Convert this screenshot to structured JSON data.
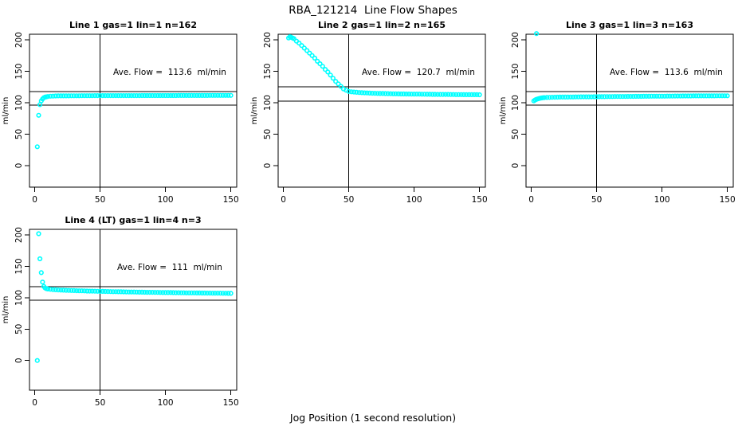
{
  "figure": {
    "title": "RBA_121214  Line Flow Shapes",
    "xlabel": "Jog Position (1 second resolution)",
    "background_color": "#ffffff",
    "line_color": "#000000"
  },
  "chart_data": [
    {
      "type": "scatter",
      "title": "Line 1 gas=1 lin=1 n=162",
      "ave_flow_label": "Ave. Flow =  113.6  ml/min",
      "ave_flow_value": 113.6,
      "ylabel": "ml/min",
      "marker_color": "#00FFFF",
      "x_ticks": [
        0,
        50,
        100,
        150
      ],
      "y_ticks": [
        0,
        50,
        100,
        150,
        200
      ],
      "xlim": [
        -4,
        154.5
      ],
      "ylim": [
        -34.2,
        209
      ],
      "vline_x": 50,
      "hlines": [
        117.7,
        96.3
      ],
      "points": [
        [
          2,
          30
        ],
        [
          3,
          80
        ],
        [
          4,
          97
        ],
        [
          5,
          103
        ],
        [
          6,
          106
        ],
        [
          7,
          108
        ],
        [
          8,
          109
        ],
        [
          9,
          109.5
        ],
        [
          10,
          110
        ],
        [
          12,
          110.4
        ],
        [
          14,
          110.6
        ],
        [
          16,
          110.8
        ],
        [
          18,
          110.9
        ],
        [
          20,
          111
        ],
        [
          22,
          111
        ],
        [
          24,
          111
        ],
        [
          26,
          111
        ],
        [
          28,
          111.1
        ],
        [
          30,
          111.1
        ],
        [
          32,
          111.1
        ],
        [
          34,
          111.1
        ],
        [
          36,
          111.2
        ],
        [
          38,
          111.2
        ],
        [
          40,
          111.2
        ],
        [
          42,
          111.2
        ],
        [
          44,
          111.2
        ],
        [
          46,
          111.3
        ],
        [
          48,
          111.3
        ],
        [
          50,
          111.3
        ],
        [
          52,
          111.3
        ],
        [
          54,
          111.3
        ],
        [
          56,
          111.3
        ],
        [
          58,
          111.3
        ],
        [
          60,
          111.4
        ],
        [
          62,
          111.4
        ],
        [
          64,
          111.4
        ],
        [
          66,
          111.4
        ],
        [
          68,
          111.4
        ],
        [
          70,
          111.4
        ],
        [
          72,
          111.4
        ],
        [
          74,
          111.4
        ],
        [
          76,
          111.4
        ],
        [
          78,
          111.4
        ],
        [
          80,
          111.4
        ],
        [
          82,
          111.5
        ],
        [
          84,
          111.5
        ],
        [
          86,
          111.5
        ],
        [
          88,
          111.5
        ],
        [
          90,
          111.5
        ],
        [
          92,
          111.5
        ],
        [
          94,
          111.5
        ],
        [
          96,
          111.5
        ],
        [
          98,
          111.5
        ],
        [
          100,
          111.5
        ],
        [
          102,
          111.5
        ],
        [
          104,
          111.5
        ],
        [
          106,
          111.5
        ],
        [
          108,
          111.5
        ],
        [
          110,
          111.6
        ],
        [
          112,
          111.6
        ],
        [
          114,
          111.6
        ],
        [
          116,
          111.6
        ],
        [
          118,
          111.6
        ],
        [
          120,
          111.6
        ],
        [
          122,
          111.6
        ],
        [
          124,
          111.6
        ],
        [
          126,
          111.6
        ],
        [
          128,
          111.6
        ],
        [
          130,
          111.6
        ],
        [
          132,
          111.6
        ],
        [
          134,
          111.7
        ],
        [
          136,
          111.7
        ],
        [
          138,
          111.7
        ],
        [
          140,
          111.7
        ],
        [
          142,
          111.7
        ],
        [
          144,
          111.7
        ],
        [
          146,
          111.7
        ],
        [
          148,
          111.7
        ],
        [
          150,
          111.7
        ]
      ]
    },
    {
      "type": "scatter",
      "title": "Line 2 gas=1 lin=2 n=165",
      "ave_flow_label": "Ave. Flow =  120.7  ml/min",
      "ave_flow_value": 120.7,
      "ylabel": "ml/min",
      "marker_color": "#00FFFF",
      "x_ticks": [
        0,
        50,
        100,
        150
      ],
      "y_ticks": [
        0,
        50,
        100,
        150,
        200
      ],
      "xlim": [
        -4,
        154.5
      ],
      "ylim": [
        -34.2,
        209
      ],
      "vline_x": 50,
      "hlines": [
        125.4,
        102.6
      ],
      "points": [
        [
          4,
          203
        ],
        [
          5,
          205
        ],
        [
          6,
          204
        ],
        [
          7,
          203
        ],
        [
          8,
          202
        ],
        [
          10,
          198
        ],
        [
          12,
          195
        ],
        [
          14,
          191
        ],
        [
          16,
          187
        ],
        [
          18,
          183
        ],
        [
          20,
          179
        ],
        [
          22,
          175
        ],
        [
          24,
          171
        ],
        [
          26,
          166
        ],
        [
          28,
          162
        ],
        [
          30,
          158
        ],
        [
          32,
          153
        ],
        [
          34,
          149
        ],
        [
          36,
          144
        ],
        [
          38,
          139
        ],
        [
          40,
          134
        ],
        [
          42,
          130
        ],
        [
          44,
          126
        ],
        [
          46,
          122
        ],
        [
          48,
          120
        ],
        [
          50,
          118
        ],
        [
          52,
          117.4
        ],
        [
          54,
          117
        ],
        [
          56,
          116.6
        ],
        [
          58,
          116.3
        ],
        [
          60,
          116
        ],
        [
          62,
          115.8
        ],
        [
          64,
          115.6
        ],
        [
          66,
          115.4
        ],
        [
          68,
          115.2
        ],
        [
          70,
          115
        ],
        [
          72,
          114.9
        ],
        [
          74,
          114.8
        ],
        [
          76,
          114.7
        ],
        [
          78,
          114.6
        ],
        [
          80,
          114.5
        ],
        [
          82,
          114.4
        ],
        [
          84,
          114.3
        ],
        [
          86,
          114.2
        ],
        [
          88,
          114.1
        ],
        [
          90,
          114
        ],
        [
          92,
          114
        ],
        [
          94,
          113.9
        ],
        [
          96,
          113.9
        ],
        [
          98,
          113.8
        ],
        [
          100,
          113.8
        ],
        [
          102,
          113.7
        ],
        [
          104,
          113.7
        ],
        [
          106,
          113.6
        ],
        [
          108,
          113.6
        ],
        [
          110,
          113.5
        ],
        [
          112,
          113.5
        ],
        [
          114,
          113.4
        ],
        [
          116,
          113.4
        ],
        [
          118,
          113.3
        ],
        [
          120,
          113.3
        ],
        [
          122,
          113.2
        ],
        [
          124,
          113.2
        ],
        [
          126,
          113.2
        ],
        [
          128,
          113.1
        ],
        [
          130,
          113.1
        ],
        [
          132,
          113
        ],
        [
          134,
          113
        ],
        [
          136,
          113
        ],
        [
          138,
          112.9
        ],
        [
          140,
          112.9
        ],
        [
          142,
          112.9
        ],
        [
          144,
          112.8
        ],
        [
          146,
          112.8
        ],
        [
          148,
          112.8
        ],
        [
          150,
          112.7
        ]
      ]
    },
    {
      "type": "scatter",
      "title": "Line 3 gas=1 lin=3 n=163",
      "ave_flow_label": "Ave. Flow =  113.6  ml/min",
      "ave_flow_value": 113.6,
      "ylabel": "ml/min",
      "marker_color": "#00FFFF",
      "x_ticks": [
        0,
        50,
        100,
        150
      ],
      "y_ticks": [
        0,
        50,
        100,
        150,
        200
      ],
      "xlim": [
        -4,
        154.5
      ],
      "ylim": [
        -34.2,
        209
      ],
      "vline_x": 50,
      "hlines": [
        117.7,
        96.3
      ],
      "points": [
        [
          4,
          210
        ],
        [
          2,
          103
        ],
        [
          3,
          104.5
        ],
        [
          4,
          105.5
        ],
        [
          5,
          106.2
        ],
        [
          6,
          106.8
        ],
        [
          7,
          107.3
        ],
        [
          8,
          107.7
        ],
        [
          9,
          108
        ],
        [
          10,
          108.2
        ],
        [
          12,
          108.4
        ],
        [
          14,
          108.5
        ],
        [
          16,
          108.7
        ],
        [
          18,
          108.8
        ],
        [
          20,
          108.9
        ],
        [
          22,
          109
        ],
        [
          24,
          109
        ],
        [
          26,
          109.1
        ],
        [
          28,
          109.1
        ],
        [
          30,
          109.2
        ],
        [
          32,
          109.2
        ],
        [
          34,
          109.3
        ],
        [
          36,
          109.3
        ],
        [
          38,
          109.4
        ],
        [
          40,
          109.4
        ],
        [
          42,
          109.5
        ],
        [
          44,
          109.5
        ],
        [
          46,
          109.5
        ],
        [
          48,
          109.6
        ],
        [
          50,
          109.6
        ],
        [
          52,
          109.7
        ],
        [
          54,
          109.7
        ],
        [
          56,
          109.7
        ],
        [
          58,
          109.8
        ],
        [
          60,
          109.8
        ],
        [
          62,
          109.8
        ],
        [
          64,
          109.9
        ],
        [
          66,
          109.9
        ],
        [
          68,
          110
        ],
        [
          70,
          110
        ],
        [
          72,
          110
        ],
        [
          74,
          110.1
        ],
        [
          76,
          110.1
        ],
        [
          78,
          110.1
        ],
        [
          80,
          110.2
        ],
        [
          82,
          110.2
        ],
        [
          84,
          110.2
        ],
        [
          86,
          110.3
        ],
        [
          88,
          110.3
        ],
        [
          90,
          110.3
        ],
        [
          92,
          110.4
        ],
        [
          94,
          110.4
        ],
        [
          96,
          110.4
        ],
        [
          98,
          110.5
        ],
        [
          100,
          110.5
        ],
        [
          102,
          110.5
        ],
        [
          104,
          110.6
        ],
        [
          106,
          110.6
        ],
        [
          108,
          110.6
        ],
        [
          110,
          110.7
        ],
        [
          112,
          110.7
        ],
        [
          114,
          110.7
        ],
        [
          116,
          110.8
        ],
        [
          118,
          110.8
        ],
        [
          120,
          110.8
        ],
        [
          122,
          110.8
        ],
        [
          124,
          110.9
        ],
        [
          126,
          110.9
        ],
        [
          128,
          110.9
        ],
        [
          130,
          110.9
        ],
        [
          132,
          111
        ],
        [
          134,
          111
        ],
        [
          136,
          111
        ],
        [
          138,
          111
        ],
        [
          140,
          111
        ],
        [
          142,
          111.1
        ],
        [
          144,
          111.1
        ],
        [
          146,
          111.1
        ],
        [
          148,
          111.1
        ],
        [
          150,
          111.1
        ]
      ]
    },
    {
      "type": "scatter",
      "title": "Line 4 (LT) gas=1 lin=4 n=3",
      "ave_flow_label": "Ave. Flow =  111  ml/min",
      "ave_flow_value": 111,
      "ylabel": "ml/min",
      "marker_color": "#00FFFF",
      "x_ticks": [
        0,
        50,
        100,
        150
      ],
      "y_ticks": [
        0,
        50,
        100,
        150,
        200
      ],
      "xlim": [
        -4,
        154.5
      ],
      "ylim": [
        -47.3,
        209
      ],
      "vline_x": 50,
      "hlines": [
        117.7,
        96.3
      ],
      "points": [
        [
          2,
          0
        ],
        [
          3,
          202
        ],
        [
          4,
          162
        ],
        [
          5,
          140
        ],
        [
          6,
          125
        ],
        [
          7,
          118
        ],
        [
          8,
          115.5
        ],
        [
          9,
          114.5
        ],
        [
          10,
          114
        ],
        [
          12,
          113.4
        ],
        [
          14,
          113
        ],
        [
          16,
          112.7
        ],
        [
          18,
          112.4
        ],
        [
          20,
          112.2
        ],
        [
          22,
          112
        ],
        [
          24,
          111.8
        ],
        [
          26,
          111.7
        ],
        [
          28,
          111.5
        ],
        [
          30,
          111.4
        ],
        [
          32,
          111.2
        ],
        [
          34,
          111.1
        ],
        [
          36,
          111
        ],
        [
          38,
          110.9
        ],
        [
          40,
          110.7
        ],
        [
          42,
          110.6
        ],
        [
          44,
          110.5
        ],
        [
          46,
          110.4
        ],
        [
          48,
          110.3
        ],
        [
          50,
          110.2
        ],
        [
          52,
          110.1
        ],
        [
          54,
          110
        ],
        [
          56,
          109.9
        ],
        [
          58,
          109.8
        ],
        [
          60,
          109.7
        ],
        [
          62,
          109.6
        ],
        [
          64,
          109.5
        ],
        [
          66,
          109.5
        ],
        [
          68,
          109.4
        ],
        [
          70,
          109.3
        ],
        [
          72,
          109.2
        ],
        [
          74,
          109.2
        ],
        [
          76,
          109.1
        ],
        [
          78,
          109
        ],
        [
          80,
          108.9
        ],
        [
          82,
          108.9
        ],
        [
          84,
          108.8
        ],
        [
          86,
          108.7
        ],
        [
          88,
          108.7
        ],
        [
          90,
          108.6
        ],
        [
          92,
          108.5
        ],
        [
          94,
          108.5
        ],
        [
          96,
          108.4
        ],
        [
          98,
          108.3
        ],
        [
          100,
          108.3
        ],
        [
          102,
          108.2
        ],
        [
          104,
          108.2
        ],
        [
          106,
          108.1
        ],
        [
          108,
          108
        ],
        [
          110,
          108
        ],
        [
          112,
          107.9
        ],
        [
          114,
          107.9
        ],
        [
          116,
          107.8
        ],
        [
          118,
          107.8
        ],
        [
          120,
          107.7
        ],
        [
          122,
          107.7
        ],
        [
          124,
          107.6
        ],
        [
          126,
          107.6
        ],
        [
          128,
          107.5
        ],
        [
          130,
          107.5
        ],
        [
          132,
          107.4
        ],
        [
          134,
          107.4
        ],
        [
          136,
          107.3
        ],
        [
          138,
          107.3
        ],
        [
          140,
          107.2
        ],
        [
          142,
          107.2
        ],
        [
          144,
          107.1
        ],
        [
          146,
          107.1
        ],
        [
          148,
          107
        ],
        [
          150,
          107
        ]
      ]
    }
  ]
}
